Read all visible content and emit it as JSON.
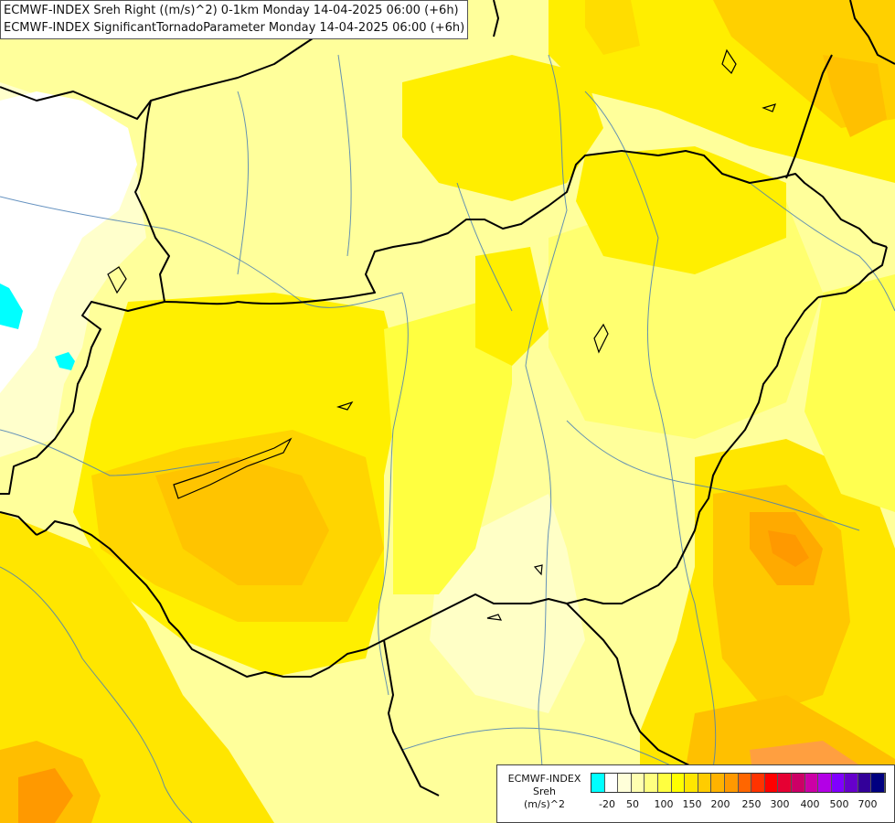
{
  "header": {
    "line1": "ECMWF-INDEX Sreh Right ((m/s)^2) 0-1km Monday 14-04-2025 06:00 (+6h)",
    "line2": "ECMWF-INDEX SignificantTornadoParameter Monday 14-04-2025 06:00 (+6h)"
  },
  "legend": {
    "line1": "ECMWF-INDEX",
    "line2": "Sreh",
    "line3": "(m/s)^2",
    "colors": [
      "#00ffff",
      "#ffffff",
      "#ffffd9",
      "#ffffb0",
      "#ffff80",
      "#ffff40",
      "#ffff00",
      "#ffe600",
      "#ffcc00",
      "#ffb300",
      "#ff9900",
      "#ff6600",
      "#ff3300",
      "#ff0000",
      "#e60033",
      "#cc0066",
      "#cc00a6",
      "#b300e6",
      "#8000ff",
      "#6600cc",
      "#330099",
      "#000080"
    ],
    "ticks": [
      "-20",
      "50",
      "100",
      "150",
      "200",
      "250",
      "300",
      "400",
      "500",
      "700"
    ]
  },
  "map_colors": {
    "background": "#ffff9b",
    "borders": "#000000",
    "rivers": "#4a7fb5"
  }
}
